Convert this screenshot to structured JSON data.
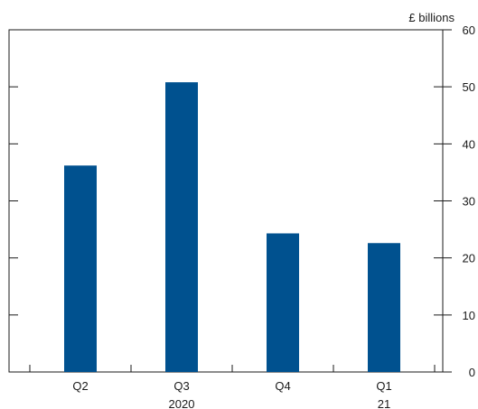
{
  "chart_data": {
    "type": "bar",
    "categories": [
      "Q2",
      "Q3",
      "Q4",
      "Q1"
    ],
    "values": [
      36.2,
      50.8,
      24.3,
      22.6
    ],
    "group_labels": [
      {
        "text": "2020",
        "category": "Q3"
      },
      {
        "text": "21",
        "category": "Q1"
      }
    ],
    "unit_label": "£ billions",
    "title": "",
    "xlabel": "",
    "ylabel": "",
    "ylim": [
      0,
      60
    ],
    "yticks": [
      0,
      10,
      20,
      30,
      40,
      50,
      60
    ],
    "y_axis_side": "right",
    "grid": false,
    "bar_color": "#00518f",
    "axis_color": "#1a1a1a"
  }
}
